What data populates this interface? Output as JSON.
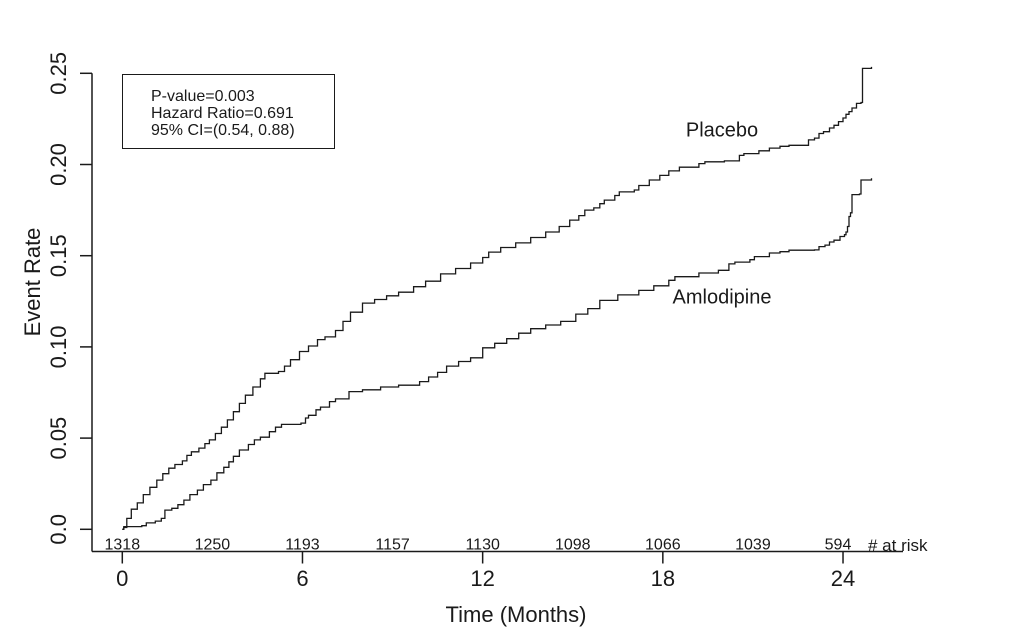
{
  "chart_data": {
    "type": "line",
    "subtype": "kaplan-meier-step",
    "title": "",
    "xlabel": "Time (Months)",
    "ylabel": "Event Rate",
    "x_ticks": [
      0,
      6,
      12,
      18,
      24
    ],
    "y_ticks": [
      {
        "value": 0.0,
        "label": "0.0"
      },
      {
        "value": 0.05,
        "label": "0.05"
      },
      {
        "value": 0.1,
        "label": "0.10"
      },
      {
        "value": 0.15,
        "label": "0.15"
      },
      {
        "value": 0.2,
        "label": "0.20"
      },
      {
        "value": 0.25,
        "label": "0.25"
      }
    ],
    "xlim": [
      0,
      26
    ],
    "ylim": [
      0,
      0.262
    ],
    "grid": false,
    "annotation": {
      "lines": [
        "P-value=0.003",
        "Hazard Ratio=0.691",
        "95% CI=(0.54, 0.88)"
      ]
    },
    "risk_table": {
      "label": "# at risk",
      "months": [
        0,
        3,
        6,
        9,
        12,
        15,
        18,
        21,
        24
      ],
      "values": [
        "1318",
        "1250",
        "1193",
        "1157",
        "1130",
        "1098",
        "1066",
        "1039",
        "594"
      ]
    },
    "series": [
      {
        "name": "Placebo",
        "points": [
          [
            0,
            0.0
          ],
          [
            0.05,
            0.001
          ],
          [
            0.15,
            0.006
          ],
          [
            0.3,
            0.011
          ],
          [
            0.5,
            0.0145
          ],
          [
            0.7,
            0.019
          ],
          [
            0.92,
            0.023
          ],
          [
            1.15,
            0.027
          ],
          [
            1.35,
            0.0305
          ],
          [
            1.55,
            0.0335
          ],
          [
            1.75,
            0.0355
          ],
          [
            2.0,
            0.0375
          ],
          [
            2.15,
            0.0405
          ],
          [
            2.3,
            0.0425
          ],
          [
            2.55,
            0.0445
          ],
          [
            2.75,
            0.047
          ],
          [
            2.9,
            0.049
          ],
          [
            3.1,
            0.0525
          ],
          [
            3.3,
            0.056
          ],
          [
            3.5,
            0.06
          ],
          [
            3.7,
            0.0645
          ],
          [
            3.9,
            0.069
          ],
          [
            4.1,
            0.0735
          ],
          [
            4.35,
            0.078
          ],
          [
            4.6,
            0.0825
          ],
          [
            4.75,
            0.0855
          ],
          [
            5.2,
            0.0865
          ],
          [
            5.4,
            0.0895
          ],
          [
            5.6,
            0.093
          ],
          [
            5.9,
            0.0975
          ],
          [
            6.2,
            0.1005
          ],
          [
            6.5,
            0.104
          ],
          [
            6.75,
            0.1055
          ],
          [
            7.1,
            0.109
          ],
          [
            7.35,
            0.114
          ],
          [
            7.6,
            0.119
          ],
          [
            8.0,
            0.124
          ],
          [
            8.4,
            0.126
          ],
          [
            8.8,
            0.128
          ],
          [
            9.2,
            0.13
          ],
          [
            9.7,
            0.133
          ],
          [
            10.1,
            0.136
          ],
          [
            10.6,
            0.14
          ],
          [
            11.1,
            0.143
          ],
          [
            11.6,
            0.146
          ],
          [
            12.0,
            0.149
          ],
          [
            12.2,
            0.152
          ],
          [
            12.6,
            0.1545
          ],
          [
            13.1,
            0.157
          ],
          [
            13.6,
            0.16
          ],
          [
            14.1,
            0.163
          ],
          [
            14.55,
            0.166
          ],
          [
            14.9,
            0.1695
          ],
          [
            15.2,
            0.172
          ],
          [
            15.4,
            0.175
          ],
          [
            15.7,
            0.1762
          ],
          [
            15.9,
            0.1785
          ],
          [
            16.05,
            0.1805
          ],
          [
            16.4,
            0.183
          ],
          [
            16.55,
            0.185
          ],
          [
            17.05,
            0.186
          ],
          [
            17.2,
            0.1885
          ],
          [
            17.55,
            0.1915
          ],
          [
            17.9,
            0.194
          ],
          [
            18.2,
            0.1965
          ],
          [
            18.55,
            0.1985
          ],
          [
            19.2,
            0.2005
          ],
          [
            19.4,
            0.2015
          ],
          [
            20.05,
            0.202
          ],
          [
            20.55,
            0.205
          ],
          [
            20.7,
            0.206
          ],
          [
            21.2,
            0.2075
          ],
          [
            21.55,
            0.209
          ],
          [
            21.9,
            0.21
          ],
          [
            22.2,
            0.2105
          ],
          [
            22.85,
            0.2135
          ],
          [
            23.05,
            0.2145
          ],
          [
            23.2,
            0.217
          ],
          [
            23.35,
            0.218
          ],
          [
            23.55,
            0.22
          ],
          [
            23.7,
            0.2215
          ],
          [
            23.85,
            0.2235
          ],
          [
            24.0,
            0.2255
          ],
          [
            24.1,
            0.2275
          ],
          [
            24.2,
            0.229
          ],
          [
            24.3,
            0.231
          ],
          [
            24.45,
            0.2335
          ],
          [
            24.6,
            0.234
          ],
          [
            24.65,
            0.2527
          ],
          [
            24.95,
            0.2535
          ]
        ]
      },
      {
        "name": "Amlodipine",
        "points": [
          [
            0,
            0.0
          ],
          [
            0.05,
            0.0015
          ],
          [
            0.65,
            0.002
          ],
          [
            0.8,
            0.0035
          ],
          [
            1.1,
            0.0045
          ],
          [
            1.3,
            0.006
          ],
          [
            1.42,
            0.0105
          ],
          [
            1.65,
            0.0115
          ],
          [
            1.85,
            0.0135
          ],
          [
            2.05,
            0.016
          ],
          [
            2.25,
            0.019
          ],
          [
            2.5,
            0.0215
          ],
          [
            2.7,
            0.0245
          ],
          [
            2.95,
            0.027
          ],
          [
            3.15,
            0.031
          ],
          [
            3.38,
            0.034
          ],
          [
            3.55,
            0.037
          ],
          [
            3.7,
            0.04
          ],
          [
            3.9,
            0.0435
          ],
          [
            4.2,
            0.0465
          ],
          [
            4.4,
            0.049
          ],
          [
            4.6,
            0.0505
          ],
          [
            4.9,
            0.0535
          ],
          [
            5.1,
            0.056
          ],
          [
            5.3,
            0.0575
          ],
          [
            5.95,
            0.0582
          ],
          [
            6.1,
            0.061
          ],
          [
            6.2,
            0.0625
          ],
          [
            6.45,
            0.0655
          ],
          [
            6.6,
            0.067
          ],
          [
            6.9,
            0.07
          ],
          [
            7.1,
            0.0715
          ],
          [
            7.55,
            0.0755
          ],
          [
            8.0,
            0.0765
          ],
          [
            8.6,
            0.078
          ],
          [
            9.2,
            0.079
          ],
          [
            9.9,
            0.081
          ],
          [
            10.2,
            0.0835
          ],
          [
            10.5,
            0.086
          ],
          [
            10.8,
            0.0895
          ],
          [
            11.2,
            0.092
          ],
          [
            11.6,
            0.094
          ],
          [
            12.0,
            0.0995
          ],
          [
            12.4,
            0.102
          ],
          [
            12.8,
            0.1045
          ],
          [
            13.2,
            0.1075
          ],
          [
            13.6,
            0.11
          ],
          [
            14.1,
            0.112
          ],
          [
            14.6,
            0.114
          ],
          [
            15.1,
            0.118
          ],
          [
            15.5,
            0.121
          ],
          [
            15.9,
            0.1255
          ],
          [
            16.5,
            0.1285
          ],
          [
            17.2,
            0.131
          ],
          [
            17.7,
            0.1335
          ],
          [
            18.2,
            0.1365
          ],
          [
            18.4,
            0.1385
          ],
          [
            19.2,
            0.1405
          ],
          [
            19.85,
            0.142
          ],
          [
            20.2,
            0.1455
          ],
          [
            20.4,
            0.1465
          ],
          [
            20.9,
            0.1478
          ],
          [
            21.05,
            0.1495
          ],
          [
            21.55,
            0.1515
          ],
          [
            21.9,
            0.1522
          ],
          [
            22.2,
            0.153
          ],
          [
            23.05,
            0.1532
          ],
          [
            23.2,
            0.155
          ],
          [
            23.4,
            0.1558
          ],
          [
            23.55,
            0.1575
          ],
          [
            23.7,
            0.1585
          ],
          [
            23.9,
            0.1605
          ],
          [
            24.05,
            0.1615
          ],
          [
            24.1,
            0.163
          ],
          [
            24.15,
            0.166
          ],
          [
            24.2,
            0.1715
          ],
          [
            24.25,
            0.1735
          ],
          [
            24.3,
            0.1835
          ],
          [
            24.55,
            0.1838
          ],
          [
            24.6,
            0.1915
          ],
          [
            24.95,
            0.1925
          ]
        ]
      }
    ],
    "colors": {
      "line": "#1a1a1a",
      "text": "#1a1a1a",
      "background": "#ffffff"
    }
  }
}
